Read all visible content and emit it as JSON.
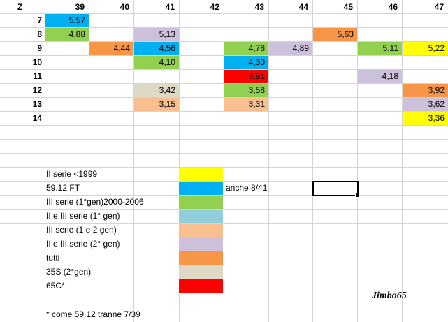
{
  "colors": {
    "yellow": "#ffff00",
    "blue": "#00b0f0",
    "green": "#92d050",
    "lightblue": "#92cddc",
    "peach": "#fabf8f",
    "lavender": "#ccc0da",
    "orange": "#f79646",
    "gray": "#ddd9c4",
    "red": "#ff0000"
  },
  "grid": {
    "corner_label": "Z",
    "columns": [
      "39",
      "40",
      "41",
      "42",
      "43",
      "44",
      "45",
      "46",
      "47"
    ],
    "rows": [
      "7",
      "8",
      "9",
      "10",
      "11",
      "12",
      "13",
      "14"
    ]
  },
  "cells": [
    {
      "row": "7",
      "col": "39",
      "value": "5,57",
      "color": "blue"
    },
    {
      "row": "8",
      "col": "39",
      "value": "4,88",
      "color": "green"
    },
    {
      "row": "8",
      "col": "41",
      "value": "5,13",
      "color": "lavender"
    },
    {
      "row": "8",
      "col": "45",
      "value": "5,63",
      "color": "orange"
    },
    {
      "row": "9",
      "col": "40",
      "value": "4,44",
      "color": "orange"
    },
    {
      "row": "9",
      "col": "41",
      "value": "4,56",
      "color": "blue"
    },
    {
      "row": "9",
      "col": "43",
      "value": "4,78",
      "color": "green"
    },
    {
      "row": "9",
      "col": "44",
      "value": "4,89",
      "color": "lavender"
    },
    {
      "row": "9",
      "col": "46",
      "value": "5,11",
      "color": "green"
    },
    {
      "row": "9",
      "col": "47",
      "value": "5,22",
      "color": "yellow"
    },
    {
      "row": "10",
      "col": "41",
      "value": "4,10",
      "color": "green"
    },
    {
      "row": "10",
      "col": "43",
      "value": "4,30",
      "color": "blue"
    },
    {
      "row": "11",
      "col": "43",
      "value": "3,91",
      "color": "red"
    },
    {
      "row": "11",
      "col": "46",
      "value": "4,18",
      "color": "lavender"
    },
    {
      "row": "12",
      "col": "41",
      "value": "3,42",
      "color": "gray"
    },
    {
      "row": "12",
      "col": "43",
      "value": "3,58",
      "color": "green"
    },
    {
      "row": "12",
      "col": "47",
      "value": "3,92",
      "color": "orange"
    },
    {
      "row": "13",
      "col": "41",
      "value": "3,15",
      "color": "peach"
    },
    {
      "row": "13",
      "col": "43",
      "value": "3,31",
      "color": "peach"
    },
    {
      "row": "13",
      "col": "47",
      "value": "3,62",
      "color": "lavender"
    },
    {
      "row": "14",
      "col": "47",
      "value": "3,36",
      "color": "yellow"
    }
  ],
  "legend": [
    {
      "label": "II serie <1999",
      "color": "yellow"
    },
    {
      "label": "59.12 FT",
      "color": "blue",
      "note": "anche 8/41"
    },
    {
      "label": "III serie (1°gen)2000-2006",
      "color": "green"
    },
    {
      "label": "II e III serie (1° gen)",
      "color": "lightblue"
    },
    {
      "label": "III serie (1 e 2 gen)",
      "color": "peach"
    },
    {
      "label": "II e III serie (2° gen)",
      "color": "lavender"
    },
    {
      "label": "tutti",
      "color": "orange"
    },
    {
      "label": "35S (2°gen)",
      "color": "gray"
    },
    {
      "label": "65C*",
      "color": "red"
    }
  ],
  "footnote": "* come 59.12 tranne 7/39",
  "signature": "Jimbo65"
}
